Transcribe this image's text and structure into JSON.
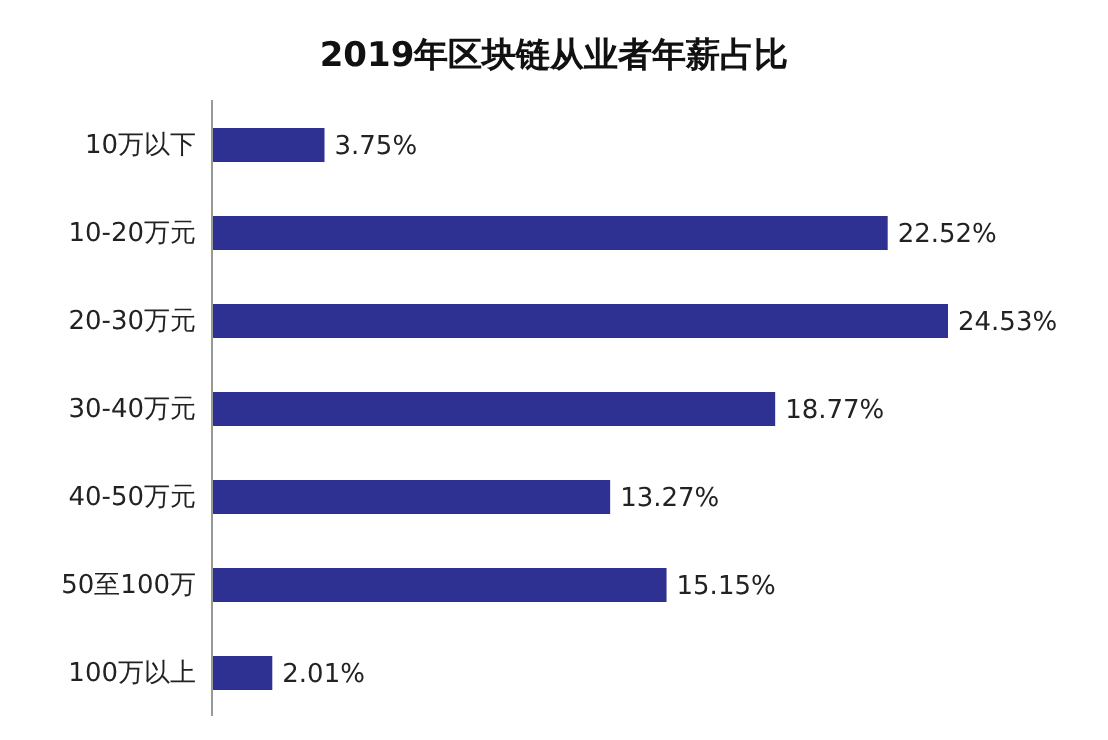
{
  "chart_data": {
    "type": "bar",
    "orientation": "horizontal",
    "title": "2019年区块链从业者年薪占比",
    "categories": [
      "10万以下",
      "10-20万元",
      "20-30万元",
      "30-40万元",
      "40-50万元",
      "50至100万",
      "100万以上"
    ],
    "values": [
      3.75,
      22.52,
      24.53,
      18.77,
      13.27,
      15.15,
      2.01
    ],
    "value_labels": [
      "3.75%",
      "22.52%",
      "24.53%",
      "18.77%",
      "13.27%",
      "15.15%",
      "2.01%"
    ],
    "color": "#2e3192",
    "grid": false,
    "legend": false
  }
}
